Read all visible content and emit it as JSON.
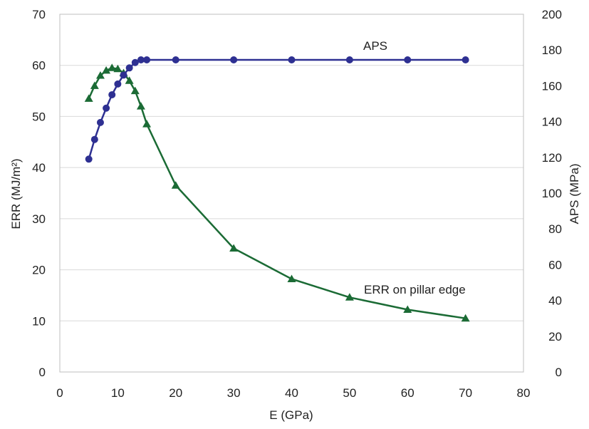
{
  "chart_data": {
    "type": "line",
    "x": [
      5,
      6,
      7,
      8,
      9,
      10,
      11,
      12,
      13,
      14,
      15,
      20,
      30,
      40,
      50,
      60,
      70
    ],
    "xlabel": "E (GPa)",
    "ylabel": "ERR (MJ/m²)",
    "y2label": "APS (MPa)",
    "xlim": [
      0,
      80
    ],
    "ylim": [
      0,
      70
    ],
    "y2lim": [
      0,
      200
    ],
    "xticks": [
      "0",
      "10",
      "20",
      "30",
      "40",
      "50",
      "60",
      "70",
      "80"
    ],
    "yticks": [
      "0",
      "10",
      "20",
      "30",
      "40",
      "50",
      "60",
      "70"
    ],
    "y2ticks": [
      "0",
      "20",
      "40",
      "60",
      "80",
      "100",
      "120",
      "140",
      "160",
      "180",
      "200"
    ],
    "grid": true,
    "series": [
      {
        "name": "APS",
        "axis": "right",
        "marker": "circle",
        "color": "#2E3092",
        "x": [
          5,
          6,
          7,
          8,
          9,
          10,
          11,
          12,
          13,
          14,
          15,
          20,
          30,
          40,
          50,
          60,
          70
        ],
        "values": [
          119,
          130,
          139.5,
          147.5,
          155,
          161,
          166,
          170,
          173,
          174.5,
          174.5,
          174.5,
          174.5,
          174.5,
          174.5,
          174.5,
          174.5
        ]
      },
      {
        "name": "ERR on pillar edge",
        "axis": "left",
        "marker": "triangle",
        "color": "#1B6B35",
        "x": [
          5,
          6,
          7,
          8,
          9,
          10,
          11,
          12,
          13,
          14,
          15,
          20,
          30,
          40,
          50,
          60,
          70
        ],
        "values": [
          53.5,
          56,
          58,
          59,
          59.5,
          59.3,
          58.5,
          57,
          55,
          52,
          48.5,
          36.5,
          24.2,
          18.2,
          14.6,
          12.2,
          10.5
        ]
      }
    ]
  }
}
